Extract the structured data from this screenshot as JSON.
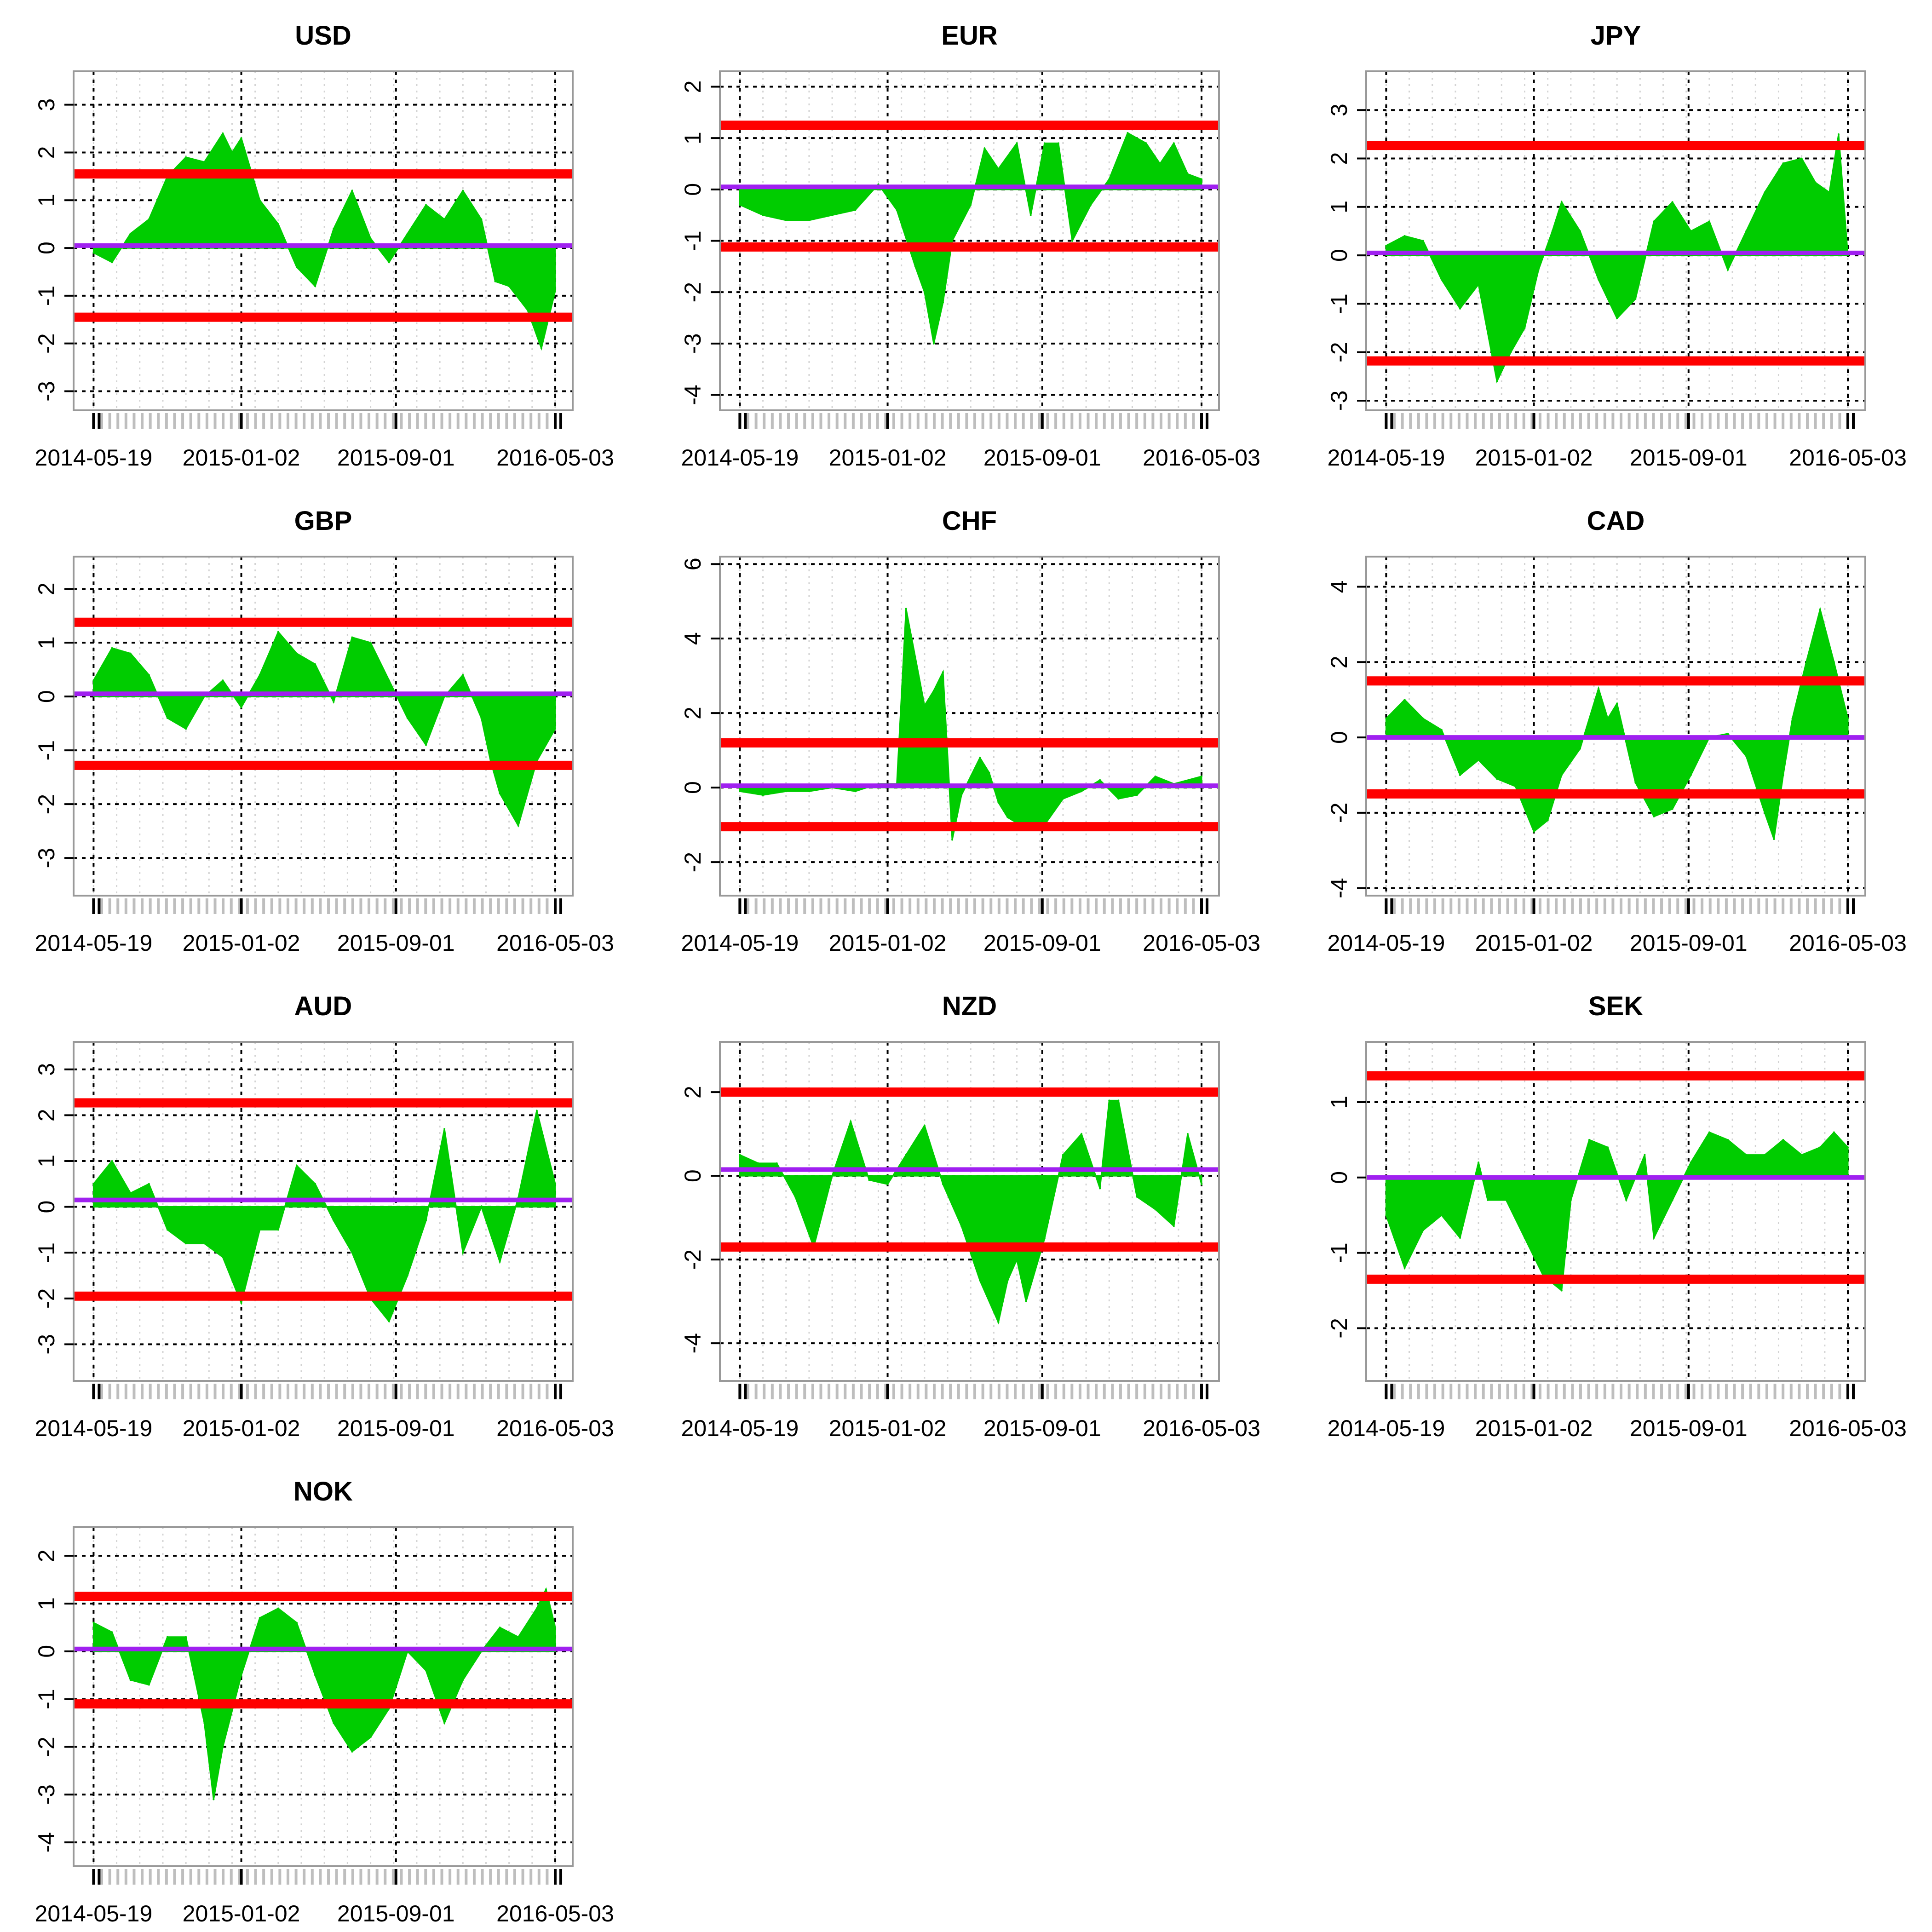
{
  "colors": {
    "fill": "#00cc00",
    "band": "#ff0000",
    "mean": "#a020f0",
    "frame": "#999999",
    "grid_major": "#000000",
    "grid_minor": "#d3d3d3",
    "rug": "#bebebe"
  },
  "chart_data": [
    {
      "type": "area",
      "title": "USD",
      "x_tick_labels": [
        "2014-05-19",
        "2015-01-02",
        "2015-09-01",
        "2016-05-03"
      ],
      "ylim": [
        -3.4,
        3.7
      ],
      "yticks": [
        -3,
        -2,
        -1,
        0,
        1,
        2,
        3
      ],
      "ytick_labels": [
        "-3",
        "-2",
        "-1",
        "0",
        "1",
        "2",
        "3"
      ],
      "upper_band": 1.55,
      "lower_band": -1.45,
      "mean": 0.05,
      "x": [
        0.0,
        0.04,
        0.08,
        0.12,
        0.16,
        0.2,
        0.24,
        0.28,
        0.3,
        0.32,
        0.36,
        0.4,
        0.44,
        0.48,
        0.52,
        0.56,
        0.6,
        0.64,
        0.68,
        0.72,
        0.76,
        0.8,
        0.84,
        0.87,
        0.9,
        0.94,
        0.97,
        1.0
      ],
      "values": [
        -0.1,
        -0.3,
        0.3,
        0.6,
        1.5,
        1.9,
        1.8,
        2.4,
        2.0,
        2.3,
        1.0,
        0.5,
        -0.4,
        -0.8,
        0.4,
        1.2,
        0.2,
        -0.3,
        0.3,
        0.9,
        0.6,
        1.2,
        0.6,
        -0.7,
        -0.8,
        -1.3,
        -2.1,
        -0.9
      ]
    },
    {
      "type": "area",
      "title": "EUR",
      "x_tick_labels": [
        "2014-05-19",
        "2015-01-02",
        "2015-09-01",
        "2016-05-03"
      ],
      "ylim": [
        -4.3,
        2.3
      ],
      "yticks": [
        -4,
        -3,
        -2,
        -1,
        0,
        1,
        2
      ],
      "ytick_labels": [
        "-4",
        "-3",
        "-2",
        "-1",
        "0",
        "1",
        "2"
      ],
      "upper_band": 1.25,
      "lower_band": -1.12,
      "mean": 0.05,
      "x": [
        0.0,
        0.05,
        0.1,
        0.15,
        0.2,
        0.25,
        0.3,
        0.34,
        0.38,
        0.4,
        0.42,
        0.44,
        0.46,
        0.5,
        0.53,
        0.56,
        0.6,
        0.63,
        0.66,
        0.69,
        0.72,
        0.76,
        0.8,
        0.84,
        0.88,
        0.91,
        0.94,
        0.97,
        1.0
      ],
      "values": [
        -0.3,
        -0.5,
        -0.6,
        -0.6,
        -0.5,
        -0.4,
        0.1,
        -0.4,
        -1.5,
        -2.0,
        -3.0,
        -2.2,
        -1.0,
        -0.3,
        0.8,
        0.4,
        0.9,
        -0.5,
        0.9,
        0.9,
        -1.0,
        -0.3,
        0.2,
        1.1,
        0.9,
        0.5,
        0.9,
        0.3,
        0.2
      ]
    },
    {
      "type": "area",
      "title": "JPY",
      "x_tick_labels": [
        "2014-05-19",
        "2015-01-02",
        "2015-09-01",
        "2016-05-03"
      ],
      "ylim": [
        -3.2,
        3.8
      ],
      "yticks": [
        -3,
        -2,
        -1,
        0,
        1,
        2,
        3
      ],
      "ytick_labels": [
        "-3",
        "-2",
        "-1",
        "0",
        "1",
        "2",
        "3"
      ],
      "upper_band": 2.27,
      "lower_band": -2.18,
      "mean": 0.05,
      "x": [
        0.0,
        0.04,
        0.08,
        0.12,
        0.16,
        0.2,
        0.24,
        0.27,
        0.3,
        0.33,
        0.36,
        0.38,
        0.42,
        0.46,
        0.5,
        0.54,
        0.58,
        0.62,
        0.66,
        0.7,
        0.74,
        0.78,
        0.82,
        0.86,
        0.9,
        0.93,
        0.96,
        0.98,
        1.0
      ],
      "values": [
        0.2,
        0.4,
        0.3,
        -0.5,
        -1.1,
        -0.6,
        -2.6,
        -2.0,
        -1.5,
        -0.3,
        0.5,
        1.1,
        0.5,
        -0.5,
        -1.3,
        -0.9,
        0.7,
        1.1,
        0.5,
        0.7,
        -0.3,
        0.5,
        1.3,
        1.9,
        2.0,
        1.5,
        1.3,
        2.5,
        0.0
      ]
    },
    {
      "type": "area",
      "title": "GBP",
      "x_tick_labels": [
        "2014-05-19",
        "2015-01-02",
        "2015-09-01",
        "2016-05-03"
      ],
      "ylim": [
        -3.7,
        2.6
      ],
      "yticks": [
        -3,
        -2,
        -1,
        0,
        1,
        2
      ],
      "ytick_labels": [
        "-3",
        "-2",
        "-1",
        "0",
        "1",
        "2"
      ],
      "upper_band": 1.38,
      "lower_band": -1.28,
      "mean": 0.05,
      "x": [
        0.0,
        0.04,
        0.08,
        0.12,
        0.16,
        0.2,
        0.24,
        0.28,
        0.32,
        0.36,
        0.4,
        0.44,
        0.48,
        0.52,
        0.56,
        0.6,
        0.64,
        0.68,
        0.72,
        0.76,
        0.8,
        0.84,
        0.86,
        0.88,
        0.92,
        0.96,
        1.0
      ],
      "values": [
        0.3,
        0.9,
        0.8,
        0.4,
        -0.4,
        -0.6,
        0.0,
        0.3,
        -0.2,
        0.4,
        1.2,
        0.8,
        0.6,
        -0.1,
        1.1,
        1.0,
        0.3,
        -0.4,
        -0.9,
        0.0,
        0.4,
        -0.4,
        -1.2,
        -1.8,
        -2.4,
        -1.2,
        -0.6
      ]
    },
    {
      "type": "area",
      "title": "CHF",
      "x_tick_labels": [
        "2014-05-19",
        "2015-01-02",
        "2015-09-01",
        "2016-05-03"
      ],
      "ylim": [
        -2.9,
        6.2
      ],
      "yticks": [
        -2,
        0,
        2,
        4,
        6
      ],
      "ytick_labels": [
        "-2",
        "0",
        "2",
        "4",
        "6"
      ],
      "upper_band": 1.2,
      "lower_band": -1.05,
      "mean": 0.05,
      "x": [
        0.0,
        0.05,
        0.1,
        0.15,
        0.2,
        0.25,
        0.3,
        0.34,
        0.36,
        0.38,
        0.4,
        0.42,
        0.44,
        0.46,
        0.48,
        0.5,
        0.52,
        0.54,
        0.56,
        0.58,
        0.62,
        0.66,
        0.7,
        0.74,
        0.78,
        0.82,
        0.86,
        0.9,
        0.94,
        1.0
      ],
      "values": [
        -0.1,
        -0.2,
        -0.1,
        -0.1,
        0.0,
        -0.1,
        0.1,
        0.1,
        4.8,
        3.5,
        2.2,
        2.6,
        3.1,
        -1.4,
        -0.2,
        0.3,
        0.8,
        0.4,
        -0.4,
        -0.8,
        -1.1,
        -1.0,
        -0.3,
        -0.1,
        0.2,
        -0.3,
        -0.2,
        0.3,
        0.1,
        0.3
      ]
    },
    {
      "type": "area",
      "title": "CAD",
      "x_tick_labels": [
        "2014-05-19",
        "2015-01-02",
        "2015-09-01",
        "2016-05-03"
      ],
      "ylim": [
        -4.2,
        4.8
      ],
      "yticks": [
        -4,
        -2,
        0,
        2,
        4
      ],
      "ytick_labels": [
        "-4",
        "-2",
        "0",
        "2",
        "4"
      ],
      "upper_band": 1.5,
      "lower_band": -1.5,
      "mean": 0.0,
      "x": [
        0.0,
        0.04,
        0.08,
        0.12,
        0.16,
        0.2,
        0.24,
        0.28,
        0.32,
        0.35,
        0.38,
        0.42,
        0.46,
        0.48,
        0.5,
        0.54,
        0.58,
        0.62,
        0.66,
        0.7,
        0.74,
        0.78,
        0.82,
        0.84,
        0.86,
        0.88,
        0.91,
        0.94,
        0.97,
        1.0
      ],
      "values": [
        0.5,
        1.0,
        0.5,
        0.2,
        -1.0,
        -0.6,
        -1.1,
        -1.3,
        -2.5,
        -2.2,
        -1.0,
        -0.3,
        1.3,
        0.5,
        0.9,
        -1.2,
        -2.1,
        -1.9,
        -1.0,
        0.0,
        0.1,
        -0.5,
        -2.0,
        -2.7,
        -1.0,
        0.5,
        2.0,
        3.4,
        2.0,
        0.5
      ]
    },
    {
      "type": "area",
      "title": "AUD",
      "x_tick_labels": [
        "2014-05-19",
        "2015-01-02",
        "2015-09-01",
        "2016-05-03"
      ],
      "ylim": [
        -3.8,
        3.6
      ],
      "yticks": [
        -3,
        -2,
        -1,
        0,
        1,
        2,
        3
      ],
      "ytick_labels": [
        "-3",
        "-2",
        "-1",
        "0",
        "1",
        "2",
        "3"
      ],
      "upper_band": 2.27,
      "lower_band": -1.95,
      "mean": 0.15,
      "x": [
        0.0,
        0.04,
        0.08,
        0.12,
        0.16,
        0.2,
        0.24,
        0.28,
        0.32,
        0.36,
        0.4,
        0.44,
        0.48,
        0.52,
        0.56,
        0.6,
        0.64,
        0.68,
        0.72,
        0.76,
        0.8,
        0.84,
        0.88,
        0.92,
        0.96,
        1.0
      ],
      "values": [
        0.5,
        1.0,
        0.3,
        0.5,
        -0.5,
        -0.8,
        -0.8,
        -1.1,
        -2.1,
        -0.5,
        -0.5,
        0.9,
        0.5,
        -0.3,
        -1.0,
        -2.0,
        -2.5,
        -1.5,
        -0.3,
        1.7,
        -1.0,
        0.0,
        -1.2,
        0.2,
        2.1,
        0.5
      ]
    },
    {
      "type": "area",
      "title": "NZD",
      "x_tick_labels": [
        "2014-05-19",
        "2015-01-02",
        "2015-09-01",
        "2016-05-03"
      ],
      "ylim": [
        -4.9,
        3.2
      ],
      "yticks": [
        -4,
        -2,
        0,
        2
      ],
      "ytick_labels": [
        "-4",
        "-2",
        "0",
        "2"
      ],
      "upper_band": 2.0,
      "lower_band": -1.7,
      "mean": 0.15,
      "x": [
        0.0,
        0.04,
        0.08,
        0.12,
        0.16,
        0.2,
        0.24,
        0.28,
        0.32,
        0.36,
        0.4,
        0.44,
        0.48,
        0.52,
        0.56,
        0.58,
        0.6,
        0.62,
        0.66,
        0.7,
        0.74,
        0.78,
        0.8,
        0.82,
        0.86,
        0.9,
        0.94,
        0.97,
        1.0
      ],
      "values": [
        0.5,
        0.3,
        0.3,
        -0.5,
        -1.7,
        0.0,
        1.3,
        -0.1,
        -0.2,
        0.5,
        1.2,
        -0.2,
        -1.2,
        -2.5,
        -3.5,
        -2.5,
        -2.0,
        -3.0,
        -1.5,
        0.5,
        1.0,
        -0.3,
        1.8,
        1.8,
        -0.5,
        -0.8,
        -1.2,
        1.0,
        -0.2
      ]
    },
    {
      "type": "area",
      "title": "SEK",
      "x_tick_labels": [
        "2014-05-19",
        "2015-01-02",
        "2015-09-01",
        "2016-05-03"
      ],
      "ylim": [
        -2.7,
        1.8
      ],
      "yticks": [
        -2,
        -1,
        0,
        1
      ],
      "ytick_labels": [
        "-2",
        "-1",
        "0",
        "1"
      ],
      "upper_band": 1.35,
      "lower_band": -1.35,
      "mean": 0.0,
      "x": [
        0.0,
        0.04,
        0.08,
        0.12,
        0.16,
        0.2,
        0.22,
        0.26,
        0.3,
        0.34,
        0.38,
        0.4,
        0.44,
        0.48,
        0.52,
        0.56,
        0.58,
        0.62,
        0.66,
        0.7,
        0.74,
        0.78,
        0.82,
        0.86,
        0.9,
        0.94,
        0.97,
        1.0
      ],
      "values": [
        -0.5,
        -1.2,
        -0.7,
        -0.5,
        -0.8,
        0.2,
        -0.3,
        -0.3,
        -0.8,
        -1.3,
        -1.5,
        -0.3,
        0.5,
        0.4,
        -0.3,
        0.3,
        -0.8,
        -0.3,
        0.2,
        0.6,
        0.5,
        0.3,
        0.3,
        0.5,
        0.3,
        0.4,
        0.6,
        0.4
      ]
    },
    {
      "type": "area",
      "title": "NOK",
      "x_tick_labels": [
        "2014-05-19",
        "2015-01-02",
        "2015-09-01",
        "2016-05-03"
      ],
      "ylim": [
        -4.5,
        2.6
      ],
      "yticks": [
        -4,
        -3,
        -2,
        -1,
        0,
        1,
        2
      ],
      "ytick_labels": [
        "-4",
        "-3",
        "-2",
        "-1",
        "0",
        "1",
        "2"
      ],
      "upper_band": 1.15,
      "lower_band": -1.1,
      "mean": 0.05,
      "x": [
        0.0,
        0.04,
        0.08,
        0.12,
        0.16,
        0.2,
        0.24,
        0.26,
        0.28,
        0.32,
        0.36,
        0.4,
        0.44,
        0.48,
        0.52,
        0.56,
        0.6,
        0.64,
        0.68,
        0.72,
        0.76,
        0.8,
        0.84,
        0.88,
        0.92,
        0.96,
        0.98,
        1.0
      ],
      "values": [
        0.6,
        0.4,
        -0.6,
        -0.7,
        0.3,
        0.3,
        -1.5,
        -3.1,
        -2.0,
        -0.5,
        0.7,
        0.9,
        0.6,
        -0.5,
        -1.5,
        -2.1,
        -1.8,
        -1.2,
        0.0,
        -0.4,
        -1.5,
        -0.6,
        0.0,
        0.5,
        0.3,
        0.9,
        1.3,
        0.5
      ]
    }
  ]
}
